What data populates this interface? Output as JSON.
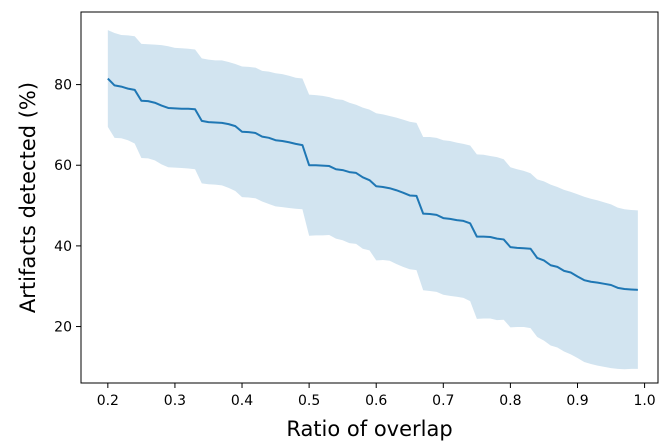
{
  "chart_data": {
    "type": "line",
    "title": "",
    "xlabel": "Ratio of overlap",
    "ylabel": "Artifacts detected (%)",
    "xlim": [
      0.16,
      1.02
    ],
    "ylim": [
      6,
      98
    ],
    "xticks": [
      0.2,
      0.3,
      0.4,
      0.5,
      0.6,
      0.7,
      0.8,
      0.9,
      1.0
    ],
    "xtick_labels": [
      "0.2",
      "0.3",
      "0.4",
      "0.5",
      "0.6",
      "0.7",
      "0.8",
      "0.9",
      "1.0"
    ],
    "yticks": [
      20,
      40,
      60,
      80
    ],
    "ytick_labels": [
      "20",
      "40",
      "60",
      "80"
    ],
    "grid": false,
    "legend": "none",
    "colors": {
      "line": "#1f77b4",
      "band": "#1f77b4",
      "band_opacity": 0.2
    },
    "series": [
      {
        "x": [
          0.2,
          0.21,
          0.22,
          0.23,
          0.24,
          0.25,
          0.26,
          0.27,
          0.28,
          0.29,
          0.3,
          0.31,
          0.32,
          0.33,
          0.34,
          0.35,
          0.36,
          0.37,
          0.38,
          0.39,
          0.4,
          0.41,
          0.42,
          0.43,
          0.44,
          0.45,
          0.46,
          0.47,
          0.48,
          0.49,
          0.5,
          0.51,
          0.52,
          0.53,
          0.54,
          0.55,
          0.56,
          0.57,
          0.58,
          0.59,
          0.6,
          0.61,
          0.62,
          0.63,
          0.64,
          0.65,
          0.66,
          0.67,
          0.68,
          0.69,
          0.7,
          0.71,
          0.72,
          0.73,
          0.74,
          0.75,
          0.76,
          0.77,
          0.78,
          0.79,
          0.8,
          0.81,
          0.82,
          0.83,
          0.84,
          0.85,
          0.86,
          0.87,
          0.88,
          0.89,
          0.9,
          0.91,
          0.92,
          0.93,
          0.94,
          0.95,
          0.96,
          0.97,
          0.98,
          0.99
        ],
        "mean": [
          81.5,
          79.8,
          79.5,
          79.0,
          78.7,
          76.0,
          75.9,
          75.5,
          74.8,
          74.2,
          74.1,
          74.0,
          74.0,
          73.9,
          71.0,
          70.7,
          70.6,
          70.5,
          70.2,
          69.7,
          68.3,
          68.2,
          68.0,
          67.1,
          66.8,
          66.2,
          66.0,
          65.7,
          65.3,
          65.0,
          60.0,
          60.0,
          59.9,
          59.8,
          59.0,
          58.8,
          58.3,
          58.1,
          57.0,
          56.3,
          54.8,
          54.6,
          54.3,
          53.8,
          53.2,
          52.5,
          52.4,
          48.0,
          47.9,
          47.7,
          46.9,
          46.7,
          46.4,
          46.2,
          45.6,
          42.3,
          42.3,
          42.2,
          41.8,
          41.6,
          39.7,
          39.5,
          39.4,
          39.3,
          37.0,
          36.4,
          35.2,
          34.8,
          33.8,
          33.4,
          32.4,
          31.5,
          31.1,
          30.9,
          30.6,
          30.3,
          29.6,
          29.3,
          29.2,
          29.1
        ],
        "upper": [
          93.5,
          92.8,
          92.3,
          92.2,
          92.0,
          90.1,
          90.0,
          89.9,
          89.8,
          89.5,
          89.1,
          89.0,
          88.9,
          88.7,
          86.5,
          86.2,
          86.0,
          86.0,
          85.6,
          85.1,
          84.5,
          84.4,
          84.2,
          83.4,
          83.2,
          82.8,
          82.6,
          82.2,
          81.7,
          81.5,
          77.5,
          77.4,
          77.2,
          76.9,
          76.4,
          76.2,
          75.5,
          75.0,
          74.3,
          73.8,
          72.9,
          72.6,
          72.2,
          71.8,
          71.3,
          70.8,
          70.5,
          67.0,
          67.0,
          66.8,
          66.2,
          66.0,
          65.6,
          65.3,
          64.9,
          62.7,
          62.6,
          62.3,
          62.0,
          61.5,
          59.5,
          59.0,
          58.6,
          58.0,
          56.5,
          56.0,
          55.2,
          54.6,
          53.9,
          53.4,
          52.8,
          52.2,
          51.7,
          51.3,
          50.8,
          50.3,
          49.5,
          49.1,
          48.9,
          48.8
        ],
        "lower": [
          69.5,
          66.8,
          66.7,
          66.2,
          65.4,
          61.8,
          61.7,
          61.2,
          60.2,
          59.5,
          59.4,
          59.3,
          59.2,
          59.0,
          55.5,
          55.3,
          55.2,
          55.0,
          54.4,
          53.6,
          52.1,
          52.0,
          51.8,
          51.0,
          50.4,
          49.8,
          49.6,
          49.4,
          49.2,
          49.1,
          42.5,
          42.6,
          42.6,
          42.7,
          41.8,
          41.4,
          40.7,
          40.5,
          39.3,
          38.9,
          36.4,
          36.5,
          36.3,
          35.5,
          34.8,
          34.2,
          34.0,
          29.0,
          28.8,
          28.6,
          27.9,
          27.6,
          27.4,
          27.1,
          26.3,
          21.9,
          22.0,
          22.0,
          21.6,
          21.7,
          19.8,
          19.9,
          19.9,
          19.6,
          17.4,
          16.5,
          15.3,
          14.8,
          13.8,
          13.1,
          12.2,
          11.2,
          10.7,
          10.3,
          10.0,
          9.7,
          9.5,
          9.4,
          9.5,
          9.5
        ]
      }
    ]
  }
}
